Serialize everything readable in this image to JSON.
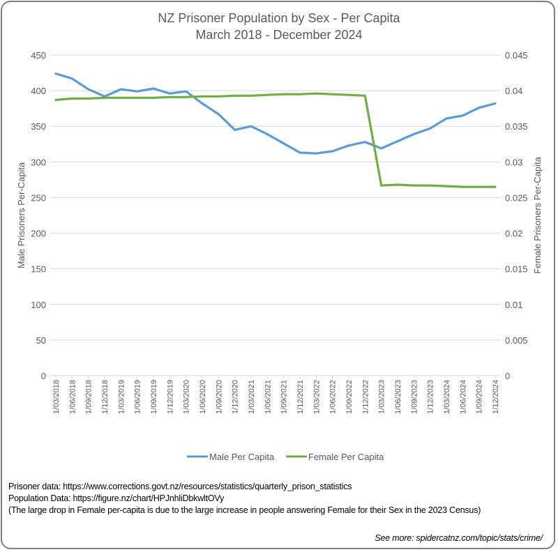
{
  "chart_data": {
    "type": "line",
    "title": "NZ Prisoner Population by Sex - Per Capita",
    "subtitle": "March 2018 - December 2024",
    "xlabel": "",
    "ylabel": "Male Prisoners Per-Capita",
    "y2label": "Female Prisoners Per-Capita",
    "ylim": [
      0,
      450
    ],
    "y2lim": [
      0,
      0.045
    ],
    "yticks": [
      "0",
      "50",
      "100",
      "150",
      "200",
      "250",
      "300",
      "350",
      "400",
      "450"
    ],
    "y2ticks": [
      "0",
      "0.005",
      "0.01",
      "0.015",
      "0.02",
      "0.025",
      "0.03",
      "0.035",
      "0.04",
      "0.045"
    ],
    "grid": true,
    "legend_position": "bottom",
    "categories": [
      "1/03/2018",
      "1/06/2018",
      "1/09/2018",
      "1/12/2018",
      "1/03/2019",
      "1/06/2019",
      "1/09/2019",
      "1/12/2019",
      "1/03/2020",
      "1/06/2020",
      "1/09/2020",
      "1/12/2020",
      "1/03/2021",
      "1/06/2021",
      "1/09/2021",
      "1/12/2021",
      "1/03/2022",
      "1/06/2022",
      "1/09/2022",
      "1/12/2022",
      "1/03/2023",
      "1/06/2023",
      "1/09/2023",
      "1/12/2023",
      "1/03/2024",
      "1/06/2024",
      "1/09/2024",
      "1/12/2024"
    ],
    "series": [
      {
        "name": "Male Per Capita",
        "axis": "left",
        "color": "#5B9BD5",
        "values": [
          424,
          417,
          402,
          392,
          402,
          399,
          403,
          396,
          399,
          382,
          367,
          345,
          350,
          339,
          326,
          313,
          312,
          315,
          323,
          328,
          319,
          329,
          339,
          347,
          361,
          365,
          376,
          382
        ]
      },
      {
        "name": "Female Per Capita",
        "axis": "right",
        "color": "#70AD47",
        "values": [
          0.0387,
          0.0389,
          0.0389,
          0.039,
          0.039,
          0.039,
          0.039,
          0.0391,
          0.0391,
          0.0392,
          0.0392,
          0.0393,
          0.0393,
          0.0394,
          0.0395,
          0.0395,
          0.0396,
          0.0395,
          0.0394,
          0.0393,
          0.0267,
          0.0268,
          0.0267,
          0.0267,
          0.0266,
          0.0265,
          0.0265,
          0.0265
        ]
      }
    ]
  },
  "notes": {
    "prisoner": "Prisoner data: https://www.corrections.govt.nz/resources/statistics/quarterly_prison_statistics",
    "population": "Population Data: https://figure.nz/chart/HPJnhliDbkwltOVy",
    "explanation": "(The large drop in Female per-capita is due to the large increase in people answering Female for their Sex in the 2023 Census)",
    "see_more": "See more: spidercatnz.com/topic/stats/crime/"
  }
}
